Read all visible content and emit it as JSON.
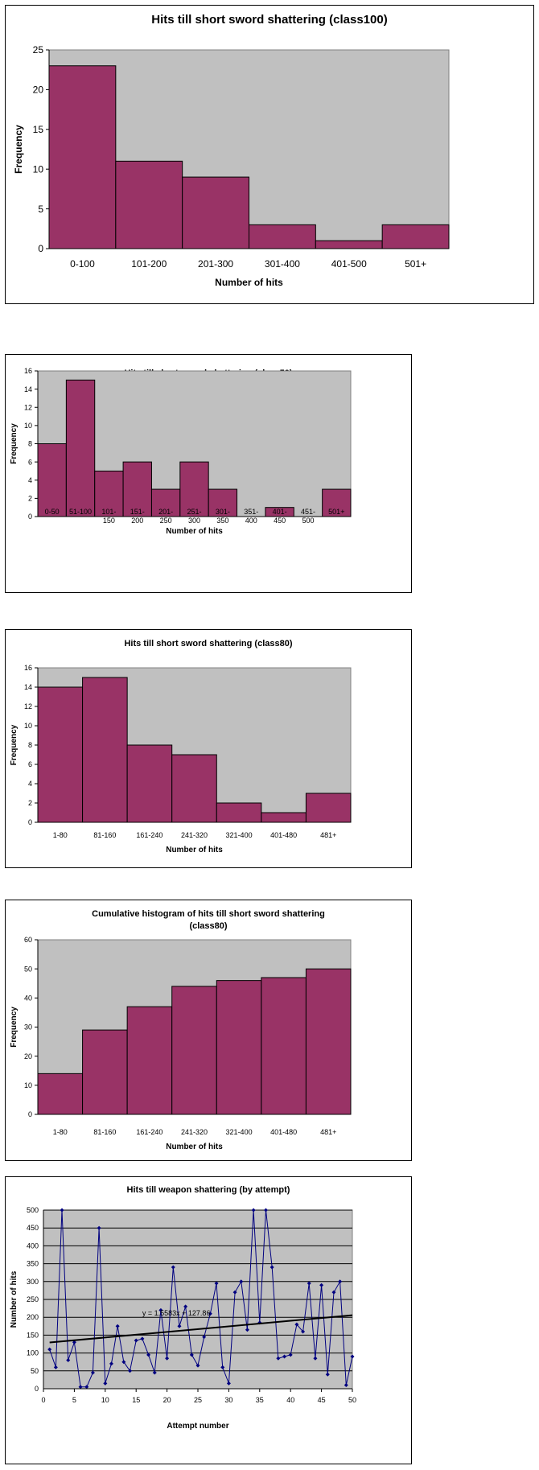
{
  "chart_data": [
    {
      "type": "bar",
      "title": "Hits till short sword shattering (class100)",
      "xlabel": "Number of hits",
      "ylabel": "Frequency",
      "categories": [
        "0-100",
        "101-200",
        "201-300",
        "301-400",
        "401-500",
        "501+"
      ],
      "values": [
        23,
        11,
        9,
        3,
        1,
        3
      ],
      "ylim": [
        0,
        25
      ],
      "yticks": [
        0,
        5,
        10,
        15,
        20,
        25
      ],
      "grid": false,
      "legend": "none"
    },
    {
      "type": "bar",
      "title": "Hits till short sword shattering (class50)",
      "xlabel": "Number of hits",
      "ylabel": "Frequency",
      "categories": [
        "0-50",
        "51-100",
        "101-150",
        "151-200",
        "201-250",
        "251-300",
        "301-350",
        "351-400",
        "401-450",
        "451-500",
        "501+"
      ],
      "category_lines": [
        [
          "0-50"
        ],
        [
          "51-100"
        ],
        [
          "101-",
          "150"
        ],
        [
          "151-",
          "200"
        ],
        [
          "201-",
          "250"
        ],
        [
          "251-",
          "300"
        ],
        [
          "301-",
          "350"
        ],
        [
          "351-",
          "400"
        ],
        [
          "401-",
          "450"
        ],
        [
          "451-",
          "500"
        ],
        [
          "501+"
        ]
      ],
      "values": [
        8,
        15,
        5,
        6,
        3,
        6,
        3,
        0,
        1,
        0,
        3
      ],
      "ylim": [
        0,
        16
      ],
      "yticks": [
        0,
        2,
        4,
        6,
        8,
        10,
        12,
        14,
        16
      ],
      "grid": false,
      "legend": "none"
    },
    {
      "type": "bar",
      "title": "Hits till short sword shattering (class80)",
      "xlabel": "Number of hits",
      "ylabel": "Frequency",
      "categories": [
        "1-80",
        "81-160",
        "161-240",
        "241-320",
        "321-400",
        "401-480",
        "481+"
      ],
      "values": [
        14,
        15,
        8,
        7,
        2,
        1,
        3
      ],
      "ylim": [
        0,
        16
      ],
      "yticks": [
        0,
        2,
        4,
        6,
        8,
        10,
        12,
        14,
        16
      ],
      "grid": false,
      "legend": "none"
    },
    {
      "type": "bar",
      "title": "Cumulative histogram of hits till short sword shattering (class80)",
      "title_lines": [
        "Cumulative histogram of hits till short sword shattering",
        "(class80)"
      ],
      "xlabel": "Number of hits",
      "ylabel": "Frequency",
      "categories": [
        "1-80",
        "81-160",
        "161-240",
        "241-320",
        "321-400",
        "401-480",
        "481+"
      ],
      "values": [
        14,
        29,
        37,
        44,
        46,
        47,
        50
      ],
      "ylim": [
        0,
        60
      ],
      "yticks": [
        0,
        10,
        20,
        30,
        40,
        50,
        60
      ],
      "grid": false,
      "legend": "none"
    },
    {
      "type": "line",
      "title": "Hits till weapon shattering (by attempt)",
      "xlabel": "Attempt number",
      "ylabel": "Number of hits",
      "x": [
        1,
        2,
        3,
        4,
        5,
        6,
        7,
        8,
        9,
        10,
        11,
        12,
        13,
        14,
        15,
        16,
        17,
        18,
        19,
        20,
        21,
        22,
        23,
        24,
        25,
        26,
        27,
        28,
        29,
        30,
        31,
        32,
        33,
        34,
        35,
        36,
        37,
        38,
        39,
        40,
        41,
        42,
        43,
        44,
        45,
        46,
        47,
        48,
        49,
        50
      ],
      "y": [
        110,
        60,
        500,
        80,
        130,
        5,
        5,
        45,
        450,
        15,
        70,
        175,
        75,
        50,
        135,
        140,
        95,
        45,
        220,
        85,
        340,
        175,
        230,
        95,
        65,
        145,
        210,
        295,
        60,
        15,
        270,
        300,
        165,
        500,
        185,
        500,
        340,
        85,
        90,
        95,
        180,
        160,
        295,
        85,
        290,
        40,
        270,
        300,
        10,
        90
      ],
      "trendline": {
        "label": "y = 1.5583x + 127.86",
        "slope": 1.5583,
        "intercept": 127.86
      },
      "xlim": [
        0,
        50
      ],
      "ylim": [
        0,
        500
      ],
      "xticks": [
        0,
        5,
        10,
        15,
        20,
        25,
        30,
        35,
        40,
        45,
        50
      ],
      "yticks": [
        0,
        50,
        100,
        150,
        200,
        250,
        300,
        350,
        400,
        450,
        500
      ],
      "grid": true,
      "legend": "none"
    }
  ],
  "colors": {
    "bar_fill": "#993366",
    "bar_stroke": "#000000",
    "plot_bg": "#c0c0c0",
    "line_color": "#000080",
    "trend_color": "#000000",
    "gridline": "#000000"
  }
}
